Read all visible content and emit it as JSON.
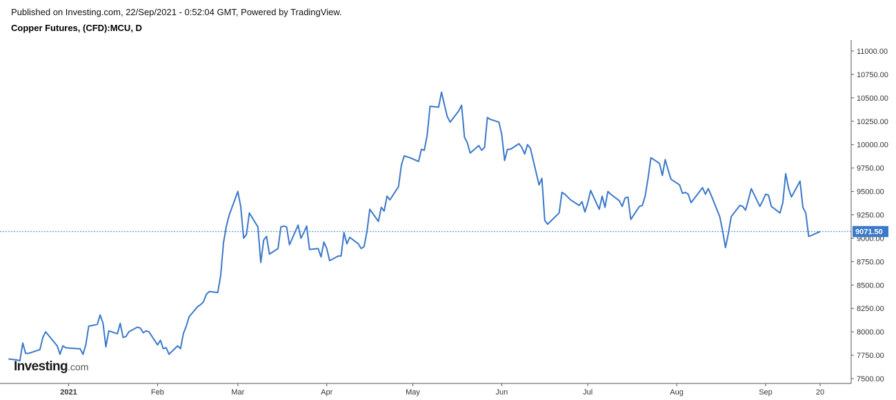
{
  "header": {
    "published": "Published on Investing.com, 22/Sep/2021 - 0:52:04 GMT, Powered by TradingView.",
    "title": "Copper Futures, (CFD):MCU, D"
  },
  "logo": {
    "brand": "Investing",
    "domain": ".com"
  },
  "colors": {
    "line": "#3a78c9",
    "last_price_bg": "#3a78c9",
    "axis": "#555555",
    "background": "#ffffff"
  },
  "chart_data": {
    "type": "line",
    "title": "Copper Futures, (CFD):MCU, D",
    "xlabel": "",
    "ylabel": "",
    "ylim": [
      7450,
      11100
    ],
    "xlim": [
      "2020-12-10",
      "2021-09-25"
    ],
    "grid": false,
    "y_ticks": [
      "7500.00",
      "7750.00",
      "8000.00",
      "8250.00",
      "8500.00",
      "8750.00",
      "9000.00",
      "9250.00",
      "9500.00",
      "9750.00",
      "10000.00",
      "10250.00",
      "10500.00",
      "10750.00",
      "11000.00"
    ],
    "x_ticks": [
      {
        "label": "2021",
        "date": "2021-01-01",
        "bold": true
      },
      {
        "label": "Feb",
        "date": "2021-02-01"
      },
      {
        "label": "Mar",
        "date": "2021-03-01"
      },
      {
        "label": "Apr",
        "date": "2021-04-01"
      },
      {
        "label": "May",
        "date": "2021-05-01"
      },
      {
        "label": "Jun",
        "date": "2021-06-01"
      },
      {
        "label": "Jul",
        "date": "2021-07-01"
      },
      {
        "label": "Aug",
        "date": "2021-08-01"
      },
      {
        "label": "Sep",
        "date": "2021-09-01"
      },
      {
        "label": "20",
        "date": "2021-09-20"
      }
    ],
    "last_price": 9071.5,
    "last_price_label": "9071.50",
    "series": [
      {
        "points": [
          [
            "2020-12-11",
            7710
          ],
          [
            "2020-12-14",
            7700
          ],
          [
            "2020-12-15",
            7690
          ],
          [
            "2020-12-16",
            7880
          ],
          [
            "2020-12-17",
            7770
          ],
          [
            "2020-12-18",
            7770
          ],
          [
            "2020-12-21",
            7800
          ],
          [
            "2020-12-22",
            7810
          ],
          [
            "2020-12-23",
            7940
          ],
          [
            "2020-12-24",
            8000
          ],
          [
            "2020-12-28",
            7850
          ],
          [
            "2020-12-29",
            7760
          ],
          [
            "2020-12-30",
            7850
          ],
          [
            "2020-12-31",
            7830
          ],
          [
            "2021-01-04",
            7820
          ],
          [
            "2021-01-05",
            7820
          ],
          [
            "2021-01-06",
            7760
          ],
          [
            "2021-01-07",
            7860
          ],
          [
            "2021-01-08",
            8060
          ],
          [
            "2021-01-11",
            8080
          ],
          [
            "2021-01-12",
            8180
          ],
          [
            "2021-01-13",
            8090
          ],
          [
            "2021-01-14",
            7840
          ],
          [
            "2021-01-15",
            8010
          ],
          [
            "2021-01-18",
            7980
          ],
          [
            "2021-01-19",
            8090
          ],
          [
            "2021-01-20",
            7940
          ],
          [
            "2021-01-21",
            7950
          ],
          [
            "2021-01-22",
            8000
          ],
          [
            "2021-01-25",
            8050
          ],
          [
            "2021-01-26",
            8040
          ],
          [
            "2021-01-27",
            7990
          ],
          [
            "2021-01-28",
            8010
          ],
          [
            "2021-01-29",
            8000
          ],
          [
            "2021-02-01",
            7860
          ],
          [
            "2021-02-02",
            7910
          ],
          [
            "2021-02-03",
            7820
          ],
          [
            "2021-02-04",
            7830
          ],
          [
            "2021-02-05",
            7760
          ],
          [
            "2021-02-08",
            7850
          ],
          [
            "2021-02-09",
            7820
          ],
          [
            "2021-02-10",
            7980
          ],
          [
            "2021-02-11",
            8060
          ],
          [
            "2021-02-12",
            8160
          ],
          [
            "2021-02-15",
            8270
          ],
          [
            "2021-02-16",
            8290
          ],
          [
            "2021-02-17",
            8320
          ],
          [
            "2021-02-18",
            8400
          ],
          [
            "2021-02-19",
            8430
          ],
          [
            "2021-02-22",
            8420
          ],
          [
            "2021-02-23",
            8600
          ],
          [
            "2021-02-24",
            8950
          ],
          [
            "2021-02-25",
            9130
          ],
          [
            "2021-02-26",
            9250
          ],
          [
            "2021-03-01",
            9500
          ],
          [
            "2021-03-02",
            9340
          ],
          [
            "2021-03-03",
            9000
          ],
          [
            "2021-03-04",
            9040
          ],
          [
            "2021-03-05",
            9270
          ],
          [
            "2021-03-08",
            9120
          ],
          [
            "2021-03-09",
            8740
          ],
          [
            "2021-03-10",
            8980
          ],
          [
            "2021-03-11",
            9020
          ],
          [
            "2021-03-12",
            8830
          ],
          [
            "2021-03-15",
            8890
          ],
          [
            "2021-03-16",
            9120
          ],
          [
            "2021-03-17",
            9130
          ],
          [
            "2021-03-18",
            9120
          ],
          [
            "2021-03-19",
            8930
          ],
          [
            "2021-03-22",
            9140
          ],
          [
            "2021-03-23",
            9000
          ],
          [
            "2021-03-24",
            9060
          ],
          [
            "2021-03-25",
            9130
          ],
          [
            "2021-03-26",
            8880
          ],
          [
            "2021-03-29",
            8890
          ],
          [
            "2021-03-30",
            8800
          ],
          [
            "2021-03-31",
            8960
          ],
          [
            "2021-04-01",
            8890
          ],
          [
            "2021-04-02",
            8760
          ],
          [
            "2021-04-05",
            8810
          ],
          [
            "2021-04-06",
            8810
          ],
          [
            "2021-04-07",
            9060
          ],
          [
            "2021-04-08",
            8940
          ],
          [
            "2021-04-09",
            9010
          ],
          [
            "2021-04-12",
            8940
          ],
          [
            "2021-04-13",
            8890
          ],
          [
            "2021-04-14",
            8910
          ],
          [
            "2021-04-15",
            9070
          ],
          [
            "2021-04-16",
            9310
          ],
          [
            "2021-04-19",
            9180
          ],
          [
            "2021-04-20",
            9330
          ],
          [
            "2021-04-21",
            9290
          ],
          [
            "2021-04-22",
            9450
          ],
          [
            "2021-04-23",
            9410
          ],
          [
            "2021-04-26",
            9550
          ],
          [
            "2021-04-27",
            9780
          ],
          [
            "2021-04-28",
            9880
          ],
          [
            "2021-04-29",
            9870
          ],
          [
            "2021-04-30",
            9860
          ],
          [
            "2021-05-03",
            9820
          ],
          [
            "2021-05-04",
            9950
          ],
          [
            "2021-05-05",
            9940
          ],
          [
            "2021-05-06",
            10100
          ],
          [
            "2021-05-07",
            10410
          ],
          [
            "2021-05-10",
            10400
          ],
          [
            "2021-05-11",
            10560
          ],
          [
            "2021-05-12",
            10430
          ],
          [
            "2021-05-13",
            10300
          ],
          [
            "2021-05-14",
            10240
          ],
          [
            "2021-05-17",
            10360
          ],
          [
            "2021-05-18",
            10420
          ],
          [
            "2021-05-19",
            10080
          ],
          [
            "2021-05-20",
            10020
          ],
          [
            "2021-05-21",
            9910
          ],
          [
            "2021-05-24",
            9990
          ],
          [
            "2021-05-25",
            9940
          ],
          [
            "2021-05-26",
            9970
          ],
          [
            "2021-05-27",
            10290
          ],
          [
            "2021-05-28",
            10270
          ],
          [
            "2021-05-31",
            10240
          ],
          [
            "2021-06-01",
            10110
          ],
          [
            "2021-06-02",
            9830
          ],
          [
            "2021-06-03",
            9950
          ],
          [
            "2021-06-04",
            9950
          ],
          [
            "2021-06-07",
            10010
          ],
          [
            "2021-06-08",
            9970
          ],
          [
            "2021-06-09",
            9900
          ],
          [
            "2021-06-10",
            10000
          ],
          [
            "2021-06-11",
            9960
          ],
          [
            "2021-06-14",
            9570
          ],
          [
            "2021-06-15",
            9640
          ],
          [
            "2021-06-16",
            9190
          ],
          [
            "2021-06-17",
            9150
          ],
          [
            "2021-06-18",
            9180
          ],
          [
            "2021-06-21",
            9270
          ],
          [
            "2021-06-22",
            9490
          ],
          [
            "2021-06-23",
            9470
          ],
          [
            "2021-06-24",
            9440
          ],
          [
            "2021-06-25",
            9410
          ],
          [
            "2021-06-28",
            9350
          ],
          [
            "2021-06-29",
            9390
          ],
          [
            "2021-06-30",
            9280
          ],
          [
            "2021-07-01",
            9380
          ],
          [
            "2021-07-02",
            9510
          ],
          [
            "2021-07-05",
            9310
          ],
          [
            "2021-07-06",
            9450
          ],
          [
            "2021-07-07",
            9330
          ],
          [
            "2021-07-08",
            9500
          ],
          [
            "2021-07-09",
            9470
          ],
          [
            "2021-07-12",
            9400
          ],
          [
            "2021-07-13",
            9340
          ],
          [
            "2021-07-14",
            9430
          ],
          [
            "2021-07-15",
            9440
          ],
          [
            "2021-07-16",
            9200
          ],
          [
            "2021-07-19",
            9340
          ],
          [
            "2021-07-20",
            9350
          ],
          [
            "2021-07-21",
            9450
          ],
          [
            "2021-07-22",
            9640
          ],
          [
            "2021-07-23",
            9860
          ],
          [
            "2021-07-26",
            9800
          ],
          [
            "2021-07-27",
            9670
          ],
          [
            "2021-07-28",
            9840
          ],
          [
            "2021-07-29",
            9730
          ],
          [
            "2021-07-30",
            9630
          ],
          [
            "2021-08-02",
            9570
          ],
          [
            "2021-08-03",
            9480
          ],
          [
            "2021-08-04",
            9490
          ],
          [
            "2021-08-05",
            9470
          ],
          [
            "2021-08-06",
            9380
          ],
          [
            "2021-08-09",
            9500
          ],
          [
            "2021-08-10",
            9540
          ],
          [
            "2021-08-11",
            9470
          ],
          [
            "2021-08-12",
            9530
          ],
          [
            "2021-08-13",
            9460
          ],
          [
            "2021-08-16",
            9230
          ],
          [
            "2021-08-17",
            9080
          ],
          [
            "2021-08-18",
            8900
          ],
          [
            "2021-08-19",
            9050
          ],
          [
            "2021-08-20",
            9230
          ],
          [
            "2021-08-23",
            9350
          ],
          [
            "2021-08-24",
            9340
          ],
          [
            "2021-08-25",
            9300
          ],
          [
            "2021-08-26",
            9410
          ],
          [
            "2021-08-27",
            9530
          ],
          [
            "2021-08-30",
            9340
          ],
          [
            "2021-08-31",
            9400
          ],
          [
            "2021-09-01",
            9470
          ],
          [
            "2021-09-02",
            9460
          ],
          [
            "2021-09-03",
            9340
          ],
          [
            "2021-09-06",
            9270
          ],
          [
            "2021-09-07",
            9380
          ],
          [
            "2021-09-08",
            9690
          ],
          [
            "2021-09-09",
            9530
          ],
          [
            "2021-09-10",
            9440
          ],
          [
            "2021-09-13",
            9610
          ],
          [
            "2021-09-14",
            9330
          ],
          [
            "2021-09-15",
            9270
          ],
          [
            "2021-09-16",
            9020
          ],
          [
            "2021-09-17",
            9030
          ],
          [
            "2021-09-20",
            9071.5
          ]
        ]
      }
    ]
  }
}
